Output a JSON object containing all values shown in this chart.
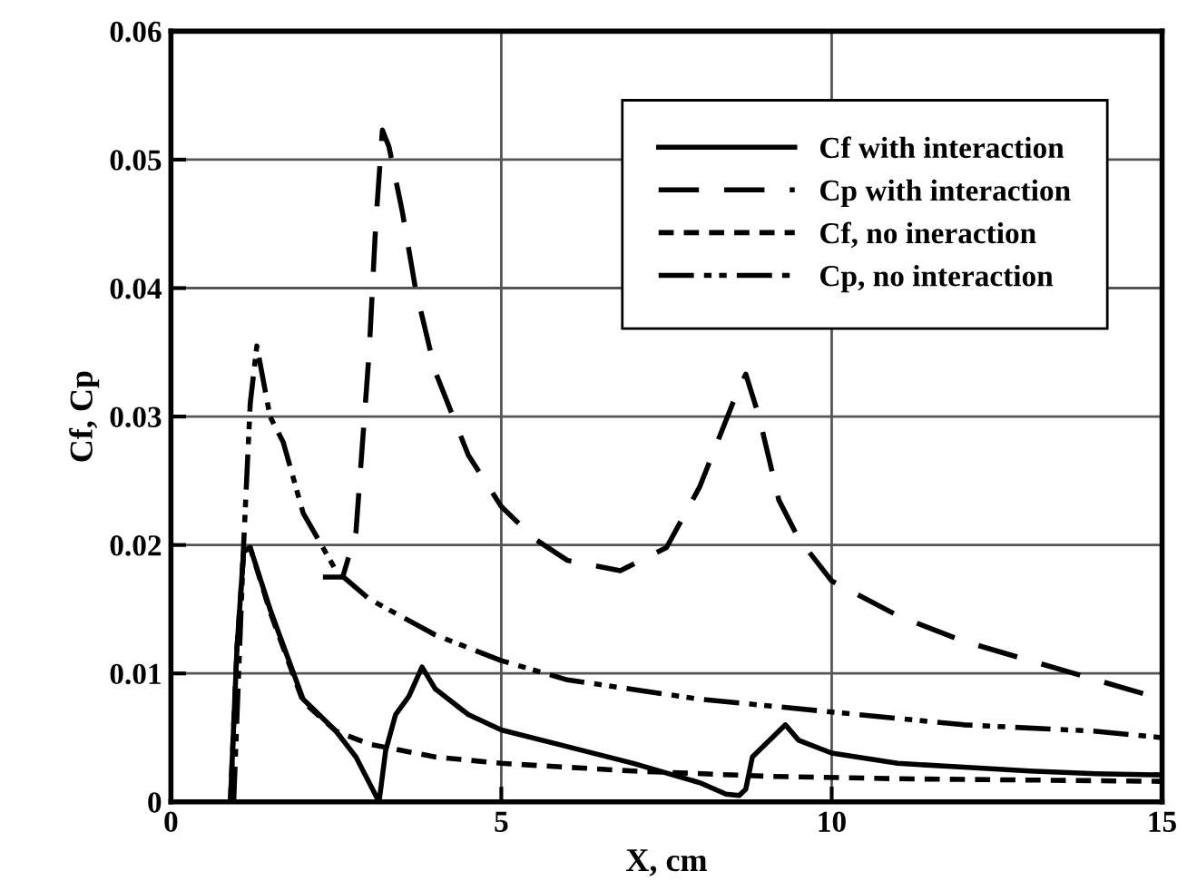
{
  "chart_data": {
    "type": "line",
    "xlabel": "X, cm",
    "ylabel": "Cf, Cp",
    "xlim": [
      0,
      15
    ],
    "ylim": [
      0,
      0.06
    ],
    "xticks": [
      0,
      5,
      10,
      15
    ],
    "yticks": [
      0,
      0.01,
      0.02,
      0.03,
      0.04,
      0.05,
      0.06
    ],
    "grid": true,
    "legend": "top right",
    "marker": "none",
    "series": [
      {
        "name": "Cf with interaction",
        "color": "#000000",
        "line_style": "solid",
        "x": [
          0.9,
          1.0,
          1.1,
          1.2,
          1.5,
          2.0,
          2.5,
          2.8,
          3.0,
          3.15,
          3.25,
          3.4,
          3.6,
          3.8,
          4.0,
          4.5,
          5,
          6,
          7,
          8,
          8.4,
          8.6,
          8.7,
          8.8,
          9.0,
          9.3,
          9.5,
          10,
          11,
          12,
          13,
          14,
          15
        ],
        "values": [
          0,
          0.012,
          0.0195,
          0.0198,
          0.015,
          0.008,
          0.0055,
          0.0035,
          0.0015,
          0,
          0.004,
          0.0068,
          0.0082,
          0.0105,
          0.0088,
          0.0068,
          0.0056,
          0.0043,
          0.003,
          0.0015,
          0.0006,
          0.0005,
          0.001,
          0.0035,
          0.0045,
          0.006,
          0.0048,
          0.0038,
          0.003,
          0.0027,
          0.0024,
          0.0022,
          0.0021
        ]
      },
      {
        "name": "Cp with interaction",
        "color": "#000000",
        "line_style": "dashed",
        "x": [
          2.3,
          2.6,
          2.8,
          3.0,
          3.1,
          3.2,
          3.3,
          3.5,
          3.7,
          4.0,
          4.5,
          5,
          5.5,
          6,
          6.8,
          7.5,
          8.0,
          8.5,
          8.7,
          8.9,
          9.2,
          9.5,
          10,
          11,
          12,
          13,
          14,
          15
        ],
        "values": [
          0.0175,
          0.0175,
          0.021,
          0.035,
          0.045,
          0.0523,
          0.051,
          0.046,
          0.04,
          0.0335,
          0.027,
          0.023,
          0.0205,
          0.0188,
          0.018,
          0.0198,
          0.0245,
          0.031,
          0.0333,
          0.03,
          0.0235,
          0.0205,
          0.0172,
          0.0145,
          0.0125,
          0.011,
          0.0095,
          0.008
        ]
      },
      {
        "name": "Cf, no ineraction",
        "color": "#000000",
        "line_style": "dotted",
        "x": [
          0.9,
          1.0,
          1.1,
          1.2,
          1.5,
          2.0,
          2.5,
          3,
          4,
          5,
          7,
          9,
          11,
          13,
          15
        ],
        "values": [
          0,
          0.012,
          0.0195,
          0.0198,
          0.0148,
          0.0078,
          0.0055,
          0.0045,
          0.0035,
          0.003,
          0.0024,
          0.002,
          0.0018,
          0.0017,
          0.0016
        ]
      },
      {
        "name": "Cp, no interaction",
        "color": "#000000",
        "line_style": "dashdot",
        "x": [
          0.95,
          1.1,
          1.2,
          1.3,
          1.5,
          1.7,
          2.0,
          2.5,
          3,
          4,
          5,
          6,
          8,
          10,
          12,
          14,
          15
        ],
        "values": [
          0,
          0.02,
          0.031,
          0.0355,
          0.03,
          0.028,
          0.0225,
          0.018,
          0.0158,
          0.013,
          0.011,
          0.0095,
          0.008,
          0.007,
          0.006,
          0.0055,
          0.005
        ]
      }
    ]
  }
}
